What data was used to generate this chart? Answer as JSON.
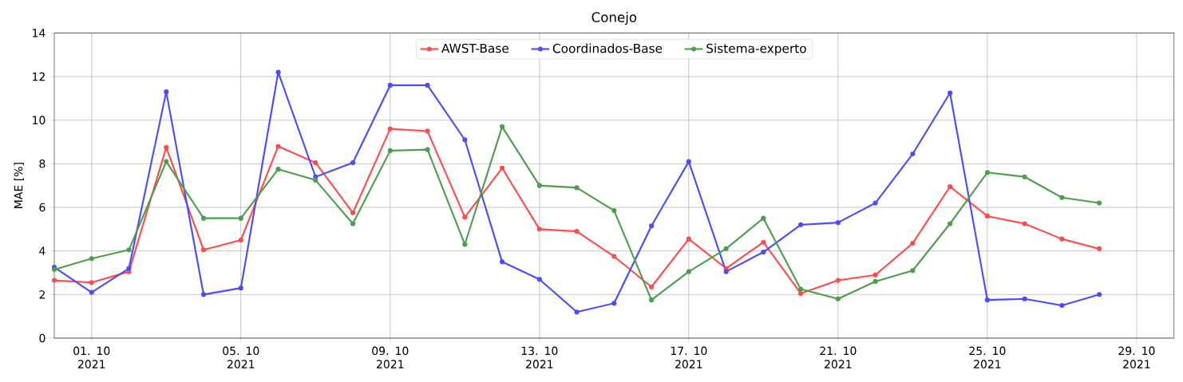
{
  "chart_data": {
    "type": "line",
    "title": "Conejo",
    "ylabel": "MAE [%]",
    "x": [
      "2021-09-30",
      "2021-10-01",
      "2021-10-02",
      "2021-10-03",
      "2021-10-04",
      "2021-10-05",
      "2021-10-06",
      "2021-10-07",
      "2021-10-08",
      "2021-10-09",
      "2021-10-10",
      "2021-10-11",
      "2021-10-12",
      "2021-10-13",
      "2021-10-14",
      "2021-10-15",
      "2021-10-16",
      "2021-10-17",
      "2021-10-18",
      "2021-10-19",
      "2021-10-20",
      "2021-10-21",
      "2021-10-22",
      "2021-10-23",
      "2021-10-24",
      "2021-10-25",
      "2021-10-26",
      "2021-10-27",
      "2021-10-28"
    ],
    "series": [
      {
        "name": "AWST-Base",
        "color": "#ff4c4c",
        "values": [
          2.65,
          2.55,
          3.05,
          8.75,
          4.05,
          4.5,
          8.8,
          8.05,
          5.75,
          9.6,
          9.5,
          5.55,
          7.8,
          5.0,
          4.9,
          3.75,
          2.35,
          4.55,
          3.2,
          4.4,
          2.05,
          2.65,
          2.9,
          4.35,
          6.95,
          5.6,
          5.25,
          4.55,
          4.1
        ]
      },
      {
        "name": "Coordinados-Base",
        "color": "#4c4cff",
        "values": [
          3.25,
          2.1,
          3.2,
          11.3,
          2.0,
          2.3,
          12.2,
          7.4,
          8.05,
          11.6,
          11.6,
          9.1,
          3.5,
          2.7,
          1.2,
          1.6,
          5.15,
          8.1,
          3.05,
          3.95,
          5.2,
          5.3,
          6.2,
          8.45,
          11.25,
          1.75,
          1.8,
          1.5,
          2.0
        ]
      },
      {
        "name": "Sistema-experto",
        "color": "#4c9f4c",
        "values": [
          3.15,
          3.65,
          4.05,
          8.1,
          5.5,
          5.5,
          7.75,
          7.25,
          5.25,
          8.6,
          8.65,
          4.3,
          9.7,
          7.0,
          6.9,
          5.85,
          1.75,
          3.05,
          4.1,
          5.5,
          2.25,
          1.8,
          2.6,
          3.1,
          5.25,
          7.6,
          7.4,
          6.45,
          6.2
        ]
      }
    ],
    "xlim": [
      "2021-09-30",
      "2021-10-30"
    ],
    "xticks": [
      {
        "value": "2021-10-01",
        "label": "01. 10 2021"
      },
      {
        "value": "2021-10-05",
        "label": "05. 10 2021"
      },
      {
        "value": "2021-10-09",
        "label": "09. 10 2021"
      },
      {
        "value": "2021-10-13",
        "label": "13. 10 2021"
      },
      {
        "value": "2021-10-17",
        "label": "17. 10 2021"
      },
      {
        "value": "2021-10-21",
        "label": "21. 10 2021"
      },
      {
        "value": "2021-10-25",
        "label": "25. 10 2021"
      },
      {
        "value": "2021-10-29",
        "label": "29. 10 2021"
      }
    ],
    "ylim": [
      0,
      14
    ],
    "yticks": [
      0,
      2,
      4,
      6,
      8,
      10,
      12,
      14
    ],
    "grid": true,
    "legend": "top",
    "marker": "circle",
    "line_style": "solid"
  }
}
